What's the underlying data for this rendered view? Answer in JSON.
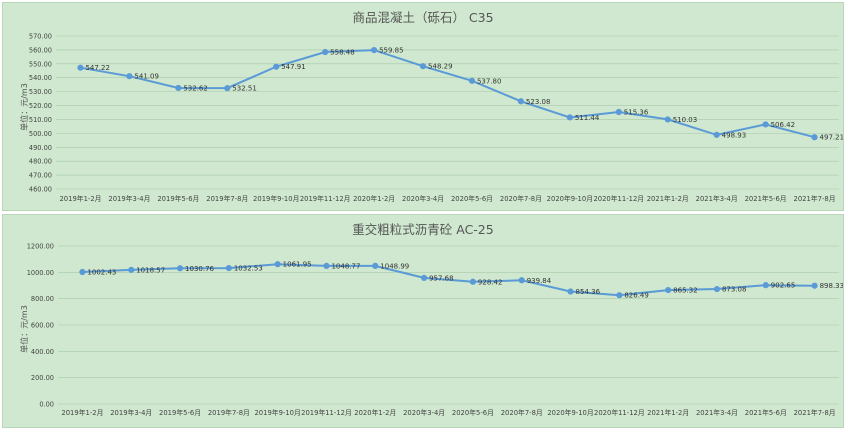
{
  "chart_data": [
    {
      "type": "line",
      "title": "商品混凝土（砾石） C35",
      "ylabel": "单位：元/m3",
      "ylim": [
        460,
        570
      ],
      "ytick_step": 10,
      "ytick_format": 2,
      "categories": [
        "2019年1-2月",
        "2019年3-4月",
        "2019年5-6月",
        "2019年7-8月",
        "2019年9-10月",
        "2019年11-12月",
        "2020年1-2月",
        "2020年3-4月",
        "2020年5-6月",
        "2020年7-8月",
        "2020年9-10月",
        "2020年11-12月",
        "2021年1-2月",
        "2021年3-4月",
        "2021年5-6月",
        "2021年7-8月"
      ],
      "values": [
        547.22,
        541.09,
        532.62,
        532.51,
        547.91,
        558.48,
        559.85,
        548.29,
        537.8,
        523.08,
        511.44,
        515.36,
        510.03,
        498.93,
        506.42,
        497.21
      ],
      "value_labels": [
        "547.22",
        "541.09",
        "532.62",
        "532.51",
        "547.91",
        "558.48",
        "559.85",
        "548.29",
        "537.80",
        "523.08",
        "511.44",
        "515.36",
        "510.03",
        "498.93",
        "506.42",
        "497.21"
      ],
      "grid": true,
      "color": "#5a9ad6"
    },
    {
      "type": "line",
      "title": "重交粗粒式沥青砼 AC-25",
      "ylabel": "单位：元/m3",
      "ylim": [
        0,
        1200
      ],
      "ytick_step": 200,
      "ytick_format": 2,
      "categories": [
        "2019年1-2月",
        "2019年3-4月",
        "2019年5-6月",
        "2019年7-8月",
        "2019年9-10月",
        "2019年11-12月",
        "2020年1-2月",
        "2020年3-4月",
        "2020年5-6月",
        "2020年7-8月",
        "2020年9-10月",
        "2020年11-12月",
        "2021年1-2月",
        "2021年3-4月",
        "2021年5-6月",
        "2021年7-8月"
      ],
      "values": [
        1002.43,
        1018.57,
        1030.76,
        1032.53,
        1061.95,
        1048.77,
        1048.99,
        957.68,
        928.42,
        939.84,
        854.36,
        826.49,
        865.32,
        873.08,
        902.65,
        898.33
      ],
      "value_labels": [
        "1002.43",
        "1018.57",
        "1030.76",
        "1032.53",
        "1061.95",
        "1048.77",
        "1048.99",
        "957.68",
        "928.42",
        "939.84",
        "854.36",
        "826.49",
        "865.32",
        "873.08",
        "902.65",
        "898.33"
      ],
      "grid": true,
      "color": "#5a9ad6"
    }
  ]
}
